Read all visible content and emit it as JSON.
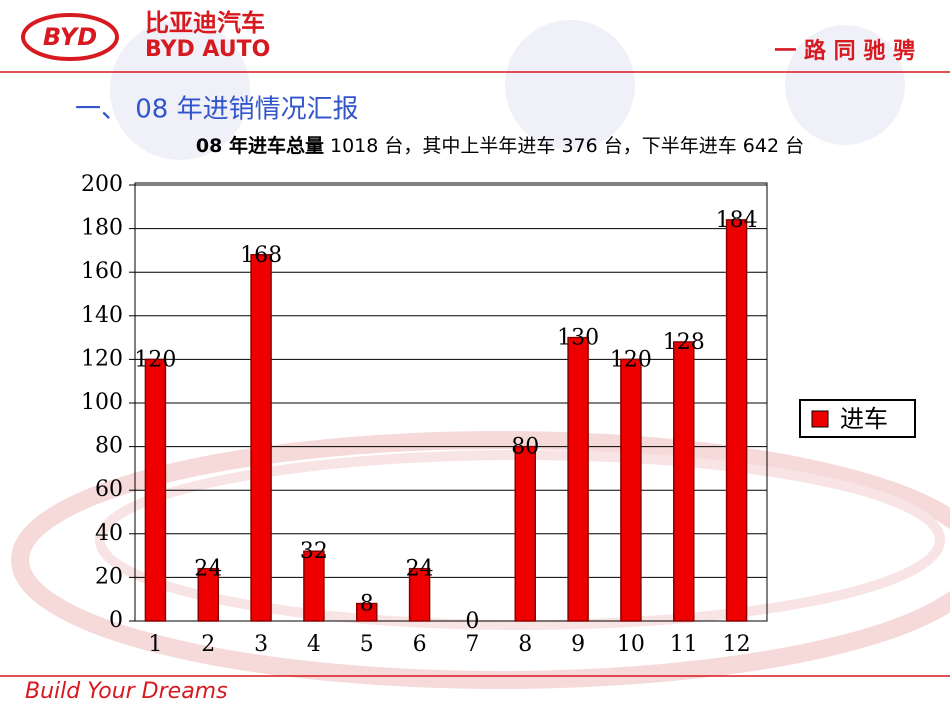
{
  "header": {
    "logo": "BYD",
    "brand_cn": "比亚迪汽车",
    "brand_en": "BYD AUTO",
    "slogan": "一 路 同 驰 骋"
  },
  "heading": "一、 08 年进销情况汇报",
  "subtitle": {
    "bold": "08 年进车总量",
    "text": " 1018 台，其中上半年进车 376 台，下半年进车 642 台"
  },
  "chart_data": {
    "type": "bar",
    "categories": [
      "1",
      "2",
      "3",
      "4",
      "5",
      "6",
      "7",
      "8",
      "9",
      "10",
      "11",
      "12"
    ],
    "series": [
      {
        "name": "进车",
        "color": "#ee0000",
        "values": [
          120,
          24,
          168,
          32,
          8,
          24,
          0,
          80,
          130,
          120,
          128,
          184
        ]
      }
    ],
    "ylim": [
      0,
      200
    ],
    "yticks": [
      0,
      20,
      40,
      60,
      80,
      100,
      120,
      140,
      160,
      180,
      200
    ],
    "grid": true,
    "legend": "right"
  },
  "footer": "Build Your Dreams"
}
